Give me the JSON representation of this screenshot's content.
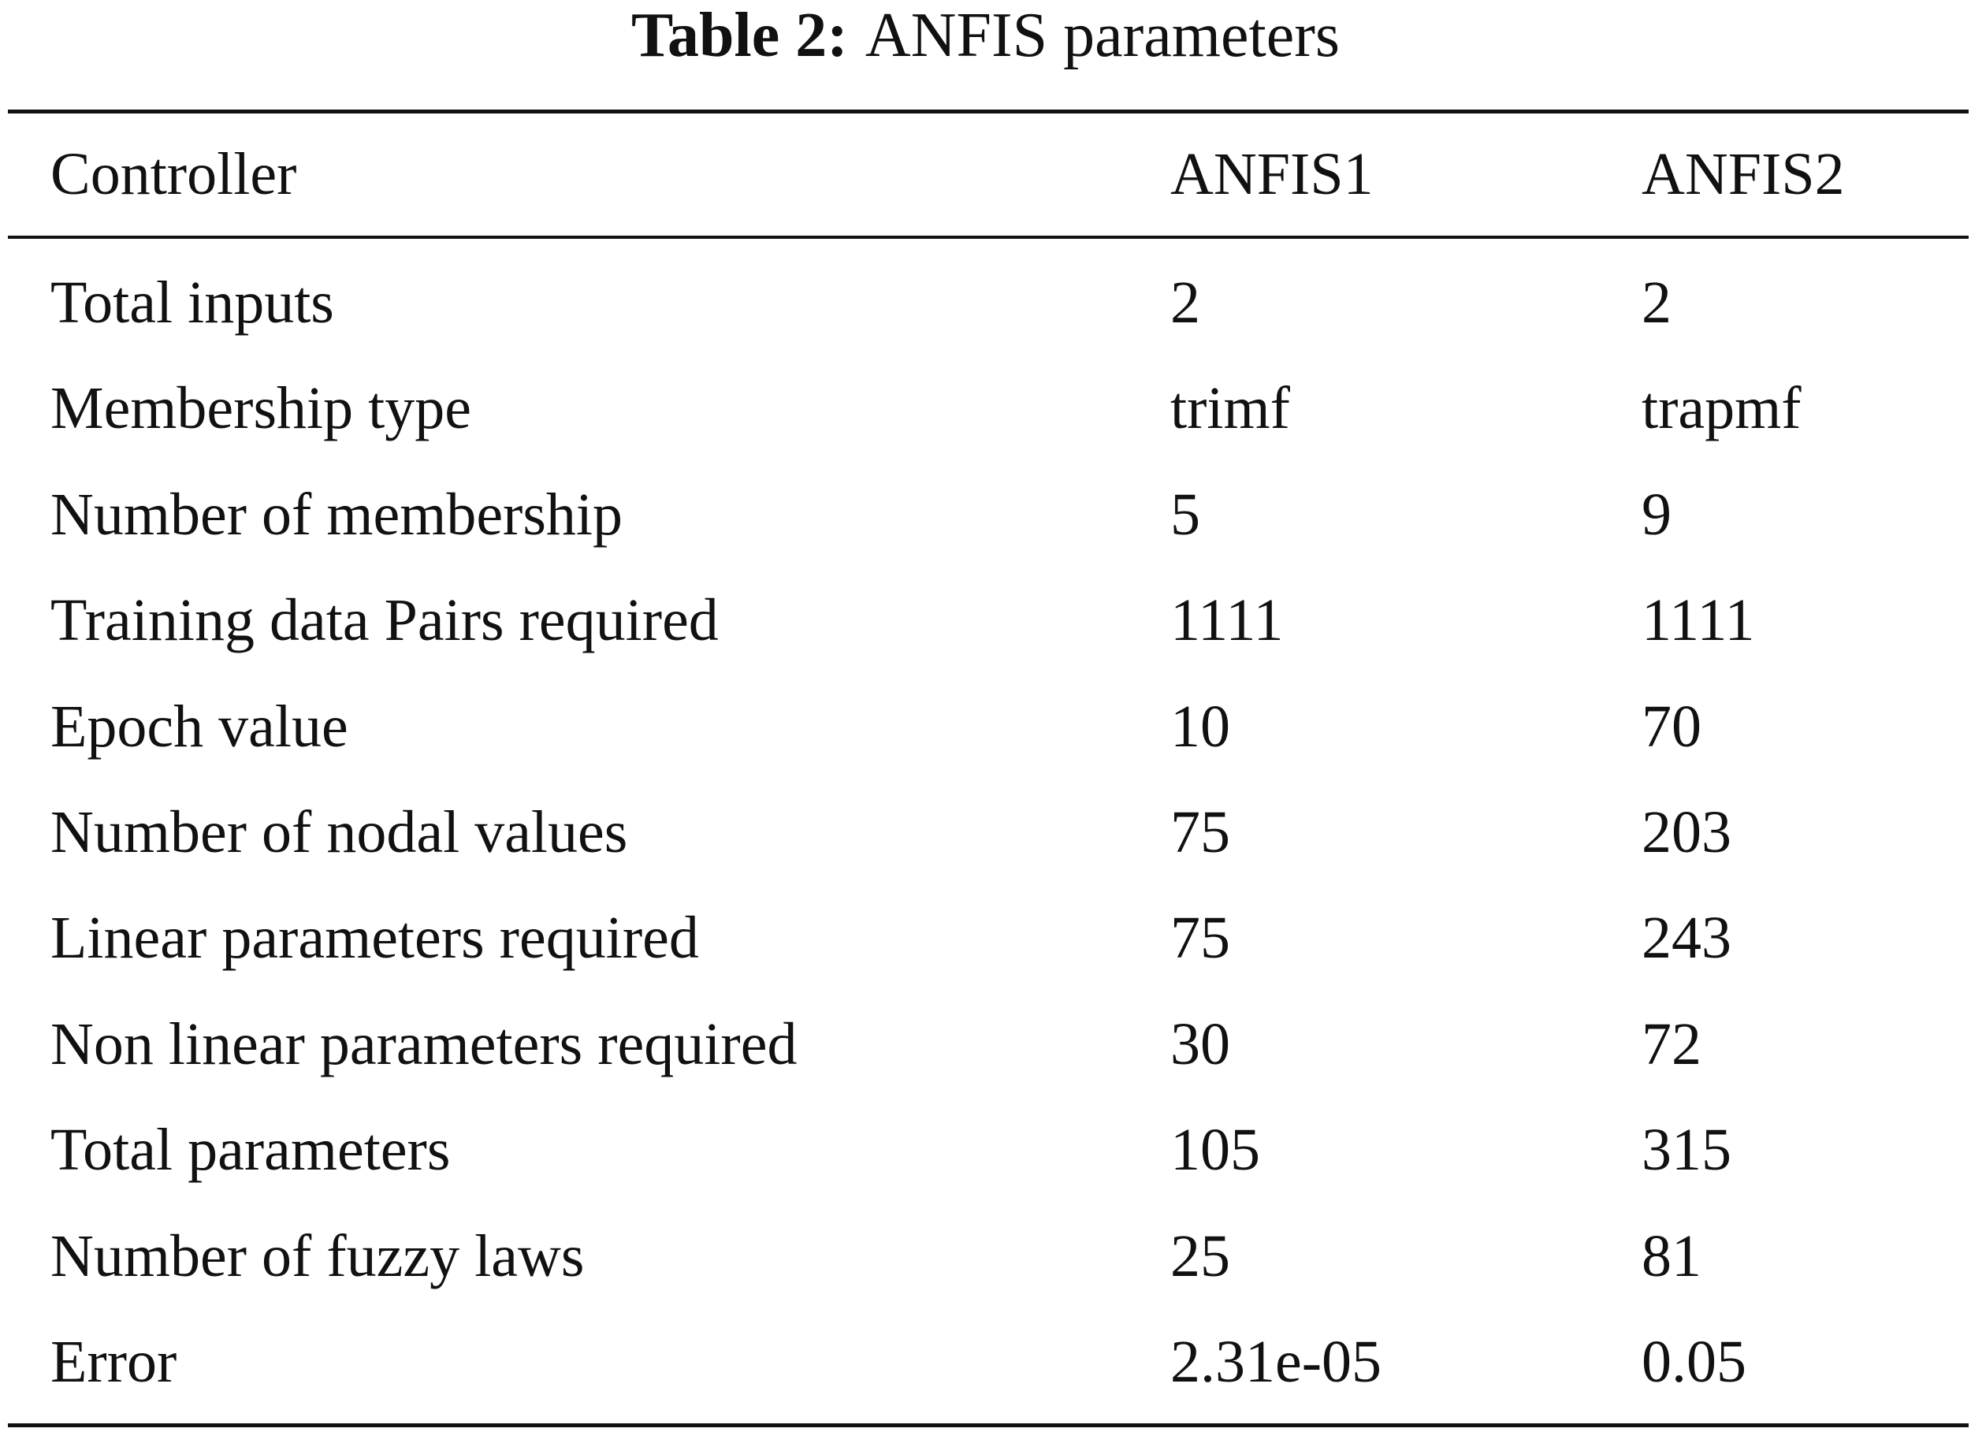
{
  "caption": {
    "label": "Table 2:",
    "text": "ANFIS parameters"
  },
  "table": {
    "header": [
      "Controller",
      "ANFIS1",
      "ANFIS2"
    ],
    "rows": [
      [
        "Total inputs",
        "2",
        "2"
      ],
      [
        "Membership type",
        "trimf",
        "trapmf"
      ],
      [
        "Number of membership",
        "5",
        "9"
      ],
      [
        "Training data Pairs required",
        "1111",
        "1111"
      ],
      [
        "Epoch value",
        "10",
        "70"
      ],
      [
        "Number of nodal values",
        "75",
        "203"
      ],
      [
        "Linear parameters required",
        "75",
        "243"
      ],
      [
        "Non linear parameters required",
        "30",
        "72"
      ],
      [
        "Total parameters",
        "105",
        "315"
      ],
      [
        "Number of fuzzy laws",
        "25",
        "81"
      ],
      [
        "Error",
        "2.31e-05",
        "0.05"
      ]
    ]
  }
}
